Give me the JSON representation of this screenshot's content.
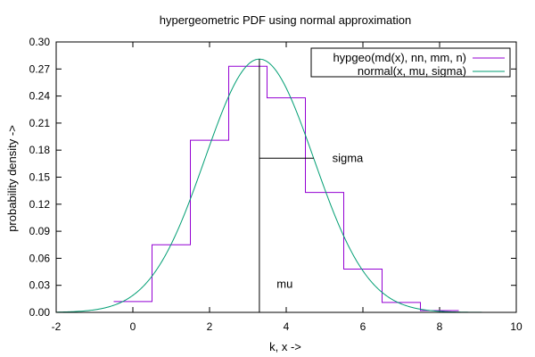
{
  "chart_data": {
    "type": "line",
    "title": "hypergeometric PDF using normal approximation",
    "xlabel": "k, x ->",
    "ylabel": "probability density ->",
    "xlim": [
      -2,
      10
    ],
    "ylim": [
      0,
      0.3
    ],
    "xticks": [
      "-2",
      "0",
      "2",
      "4",
      "6",
      "8",
      "10"
    ],
    "yticks": [
      "0.00",
      "0.03",
      "0.06",
      "0.09",
      "0.12",
      "0.15",
      "0.18",
      "0.21",
      "0.24",
      "0.27",
      "0.30"
    ],
    "grid": false,
    "legend_position": "top-right",
    "series": [
      {
        "name": "hypgeo(md(x), nn, mm, n)",
        "style": "steps",
        "color": "#9400d3",
        "x": [
          0,
          1,
          2,
          3,
          4,
          5,
          6,
          7,
          8
        ],
        "y": [
          0.012,
          0.075,
          0.191,
          0.273,
          0.238,
          0.133,
          0.048,
          0.011,
          0.002
        ]
      },
      {
        "name": "normal(x, mu, sigma)",
        "style": "curve",
        "color": "#009e73",
        "mu": 3.3,
        "sigma": 1.42,
        "peak": 0.281
      }
    ],
    "annotations": [
      {
        "label": "mu",
        "x": 3.75,
        "y": 0.027
      },
      {
        "label": "sigma",
        "x": 5.2,
        "y": 0.167
      }
    ],
    "mu_line": {
      "x": 3.3,
      "y_top": 0.281
    },
    "sigma_line": {
      "x_start": 3.3,
      "x_end": 4.72,
      "y": 0.171
    }
  }
}
